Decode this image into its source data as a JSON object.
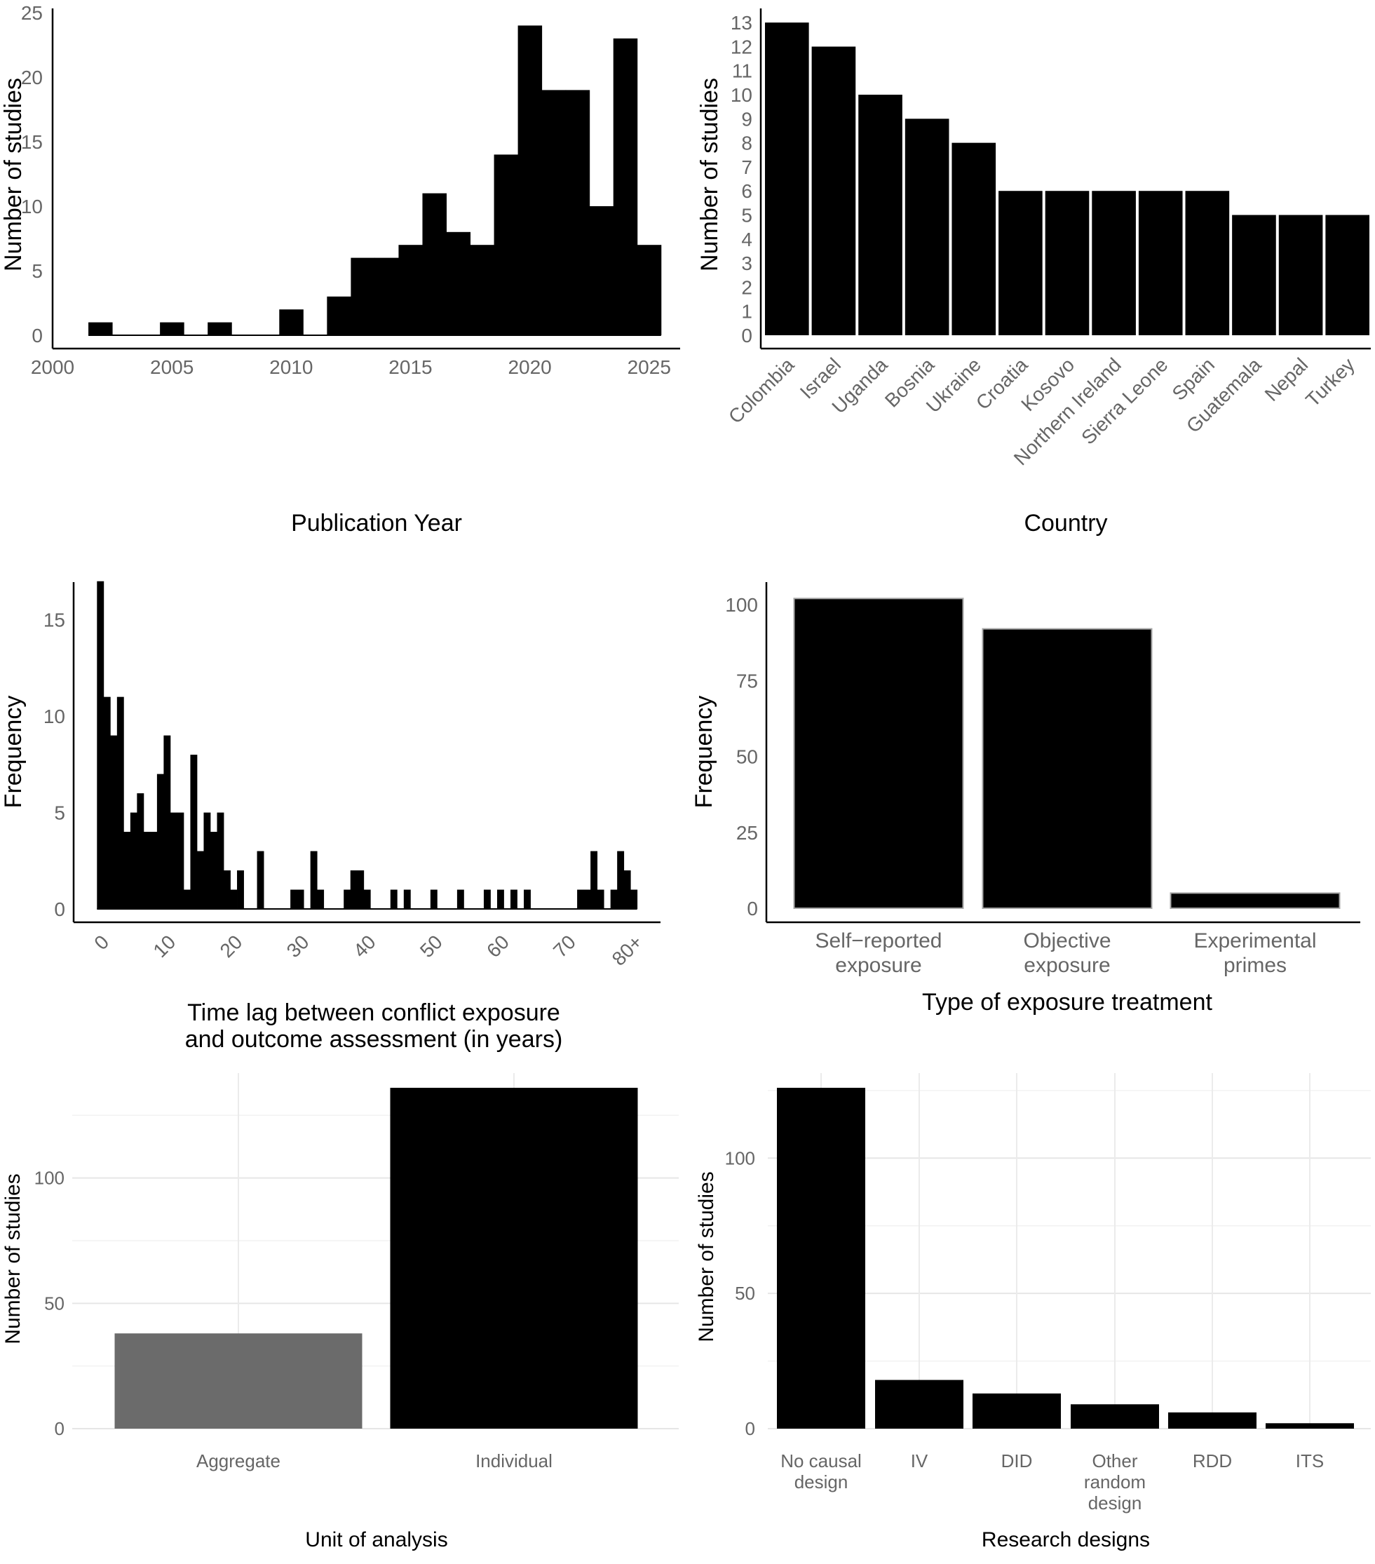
{
  "chart_data": [
    {
      "id": "publication-year",
      "type": "bar",
      "xlabel": "Publication Year",
      "ylabel": "Number of studies",
      "xlim": [
        2000,
        2026.3
      ],
      "ylim": [
        0,
        25
      ],
      "x_ticks": [
        "2000",
        "2005",
        "2010",
        "2015",
        "2020",
        "2025"
      ],
      "y_ticks": [
        "0",
        "5",
        "10",
        "15",
        "20",
        "25"
      ],
      "bins": [
        {
          "x": 2002,
          "value": 1
        },
        {
          "x": 2003,
          "value": 0
        },
        {
          "x": 2004,
          "value": 0
        },
        {
          "x": 2005,
          "value": 1
        },
        {
          "x": 2006,
          "value": 0
        },
        {
          "x": 2007,
          "value": 1
        },
        {
          "x": 2008,
          "value": 0
        },
        {
          "x": 2009,
          "value": 0
        },
        {
          "x": 2010,
          "value": 2
        },
        {
          "x": 2011,
          "value": 0
        },
        {
          "x": 2012,
          "value": 3
        },
        {
          "x": 2013,
          "value": 6
        },
        {
          "x": 2014,
          "value": 6
        },
        {
          "x": 2015,
          "value": 7
        },
        {
          "x": 2016,
          "value": 11
        },
        {
          "x": 2017,
          "value": 8
        },
        {
          "x": 2018,
          "value": 7
        },
        {
          "x": 2019,
          "value": 14
        },
        {
          "x": 2020,
          "value": 24
        },
        {
          "x": 2021,
          "value": 19
        },
        {
          "x": 2022,
          "value": 19
        },
        {
          "x": 2023,
          "value": 10
        },
        {
          "x": 2024,
          "value": 23
        },
        {
          "x": 2025,
          "value": 7
        }
      ],
      "bar_color": "#000000"
    },
    {
      "id": "country",
      "type": "bar",
      "xlabel": "Country",
      "ylabel": "Number of studies",
      "ylim": [
        0,
        13.5
      ],
      "y_ticks": [
        "0",
        "1",
        "2",
        "3",
        "4",
        "5",
        "6",
        "7",
        "8",
        "9",
        "10",
        "11",
        "12",
        "13"
      ],
      "categories": [
        "Colombia",
        "Israel",
        "Uganda",
        "Bosnia",
        "Ukraine",
        "Croatia",
        "Kosovo",
        "Northern Ireland",
        "Sierra Leone",
        "Spain",
        "Guatemala",
        "Nepal",
        "Turkey"
      ],
      "values": [
        13,
        12,
        10,
        9,
        8,
        6,
        6,
        6,
        6,
        6,
        5,
        5,
        5
      ],
      "bar_color": "#000000"
    },
    {
      "id": "time-lag",
      "type": "bar",
      "xlabel": "Time lag between conflict exposure and outcome assessment (in years)",
      "xlabel_lines": [
        "Time lag between conflict exposure",
        "and outcome assessment (in years)"
      ],
      "ylabel": "Frequency",
      "xlim": [
        -4,
        84
      ],
      "ylim": [
        0,
        17.5
      ],
      "x_ticks": [
        "0",
        "10",
        "20",
        "30",
        "40",
        "50",
        "60",
        "70",
        "80+"
      ],
      "y_ticks": [
        "0",
        "5",
        "10",
        "15"
      ],
      "values": [
        17,
        11,
        9,
        11,
        4,
        5,
        6,
        4,
        4,
        7,
        9,
        5,
        5,
        1,
        8,
        3,
        5,
        4,
        5,
        2,
        1,
        2,
        0,
        0,
        3,
        0,
        0,
        0,
        0,
        1,
        1,
        0,
        3,
        1,
        0,
        0,
        0,
        1,
        2,
        2,
        1,
        0,
        0,
        0,
        1,
        0,
        1,
        0,
        0,
        0,
        1,
        0,
        0,
        0,
        1,
        0,
        0,
        0,
        1,
        0,
        1,
        0,
        1,
        0,
        1,
        0,
        0,
        0,
        0,
        0,
        0,
        0,
        1,
        1,
        3,
        1,
        0,
        1,
        3,
        2,
        1,
        0,
        0,
        0,
        0,
        0,
        1,
        4
      ],
      "bar_color": "#000000"
    },
    {
      "id": "exposure-type",
      "type": "bar",
      "xlabel": "Type of exposure treatment",
      "ylabel": "Frequency",
      "ylim": [
        0,
        105
      ],
      "y_ticks": [
        "0",
        "25",
        "50",
        "75",
        "100"
      ],
      "categories": [
        "Self−reported\nexposure",
        "Objective\nexposure",
        "Experimental\nprimes"
      ],
      "values": [
        102,
        92,
        5
      ],
      "bar_color": "#000000",
      "bar_outline": "#a6a6a6"
    },
    {
      "id": "unit-of-analysis",
      "type": "bar",
      "xlabel": "Unit of analysis",
      "ylabel": "Number of studies",
      "ylim": [
        0,
        142
      ],
      "y_ticks": [
        "0",
        "50",
        "100"
      ],
      "categories": [
        "Aggregate",
        "Individual"
      ],
      "values": [
        38,
        136
      ],
      "colors": [
        "#6b6b6b",
        "#000000"
      ],
      "grid": true
    },
    {
      "id": "research-designs",
      "type": "bar",
      "xlabel": "Research designs",
      "ylabel": "Number of studies",
      "ylim": [
        0,
        132
      ],
      "y_ticks": [
        "0",
        "50",
        "100"
      ],
      "categories": [
        "No causal\ndesign",
        "IV",
        "DID",
        "Other\nrandom\ndesign",
        "RDD",
        "ITS"
      ],
      "values": [
        126,
        18,
        13,
        9,
        6,
        2
      ],
      "bar_color": "#000000",
      "grid": true
    }
  ]
}
